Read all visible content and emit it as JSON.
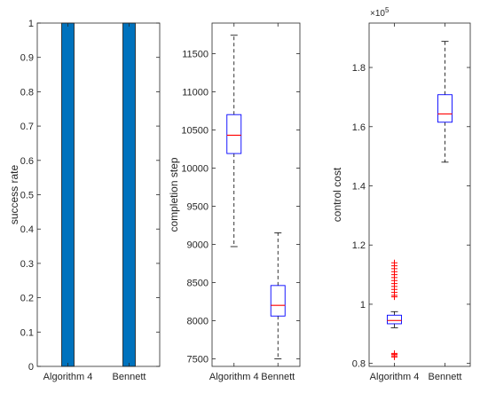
{
  "chart_data": [
    {
      "type": "bar",
      "categories": [
        "Algorithm 4",
        "Bennett"
      ],
      "values": [
        1,
        1
      ],
      "ylabel": "success rate",
      "xlabel": "",
      "ylim": [
        0,
        1
      ],
      "yticks": [
        "0",
        "0.1",
        "0.2",
        "0.3",
        "0.4",
        "0.5",
        "0.6",
        "0.7",
        "0.8",
        "0.9",
        "1"
      ],
      "bar_color": "#0072bd",
      "grid": false
    },
    {
      "type": "box",
      "categories": [
        "Algorithm 4",
        "Bennett"
      ],
      "ylabel": "completion step",
      "xlabel": "",
      "ylim": [
        7400,
        11900
      ],
      "yticks": [
        "7500",
        "8000",
        "8500",
        "9000",
        "9500",
        "10000",
        "10500",
        "11000",
        "11500"
      ],
      "boxes": [
        {
          "category": "Algorithm 4",
          "whisker_low": 8970,
          "q1": 10190,
          "median": 10430,
          "q3": 10700,
          "whisker_high": 11740,
          "outliers": []
        },
        {
          "category": "Bennett",
          "whisker_low": 7500,
          "q1": 8060,
          "median": 8200,
          "q3": 8460,
          "whisker_high": 9150,
          "outliers": []
        }
      ],
      "box_color": "#0000ff",
      "median_color": "#ff0000",
      "grid": false
    },
    {
      "type": "box",
      "categories": [
        "Algorithm 4",
        "Bennett"
      ],
      "ylabel": "control cost",
      "xlabel": "",
      "exponent_label": "×10",
      "exponent_power": "5",
      "ylim": [
        0.79,
        1.95
      ],
      "yticks": [
        "0.8",
        "1",
        "1.2",
        "1.4",
        "1.6",
        "1.8"
      ],
      "boxes": [
        {
          "category": "Algorithm 4",
          "whisker_low": 0.92,
          "q1": 0.934,
          "median": 0.945,
          "q3": 0.963,
          "whisker_high": 0.975,
          "outliers": [
            0.822,
            0.826,
            0.831,
            0.834,
            1.025,
            1.03,
            1.04,
            1.05,
            1.06,
            1.07,
            1.08,
            1.09,
            1.1,
            1.11,
            1.12,
            1.13,
            1.14
          ]
        },
        {
          "category": "Bennett",
          "whisker_low": 1.48,
          "q1": 1.615,
          "median": 1.643,
          "q3": 1.708,
          "whisker_high": 1.888,
          "outliers": []
        }
      ],
      "box_color": "#0000ff",
      "median_color": "#ff0000",
      "outlier_color": "#ff0000",
      "grid": false
    }
  ]
}
